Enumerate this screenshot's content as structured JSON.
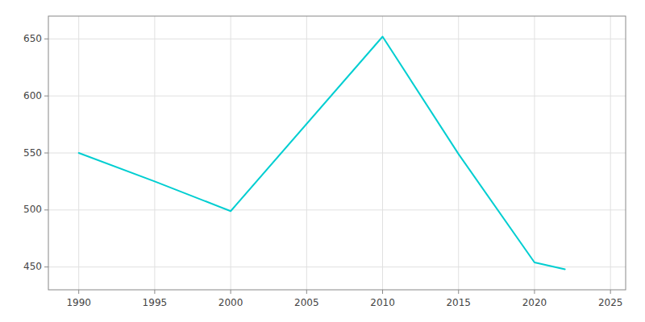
{
  "chart_data": {
    "type": "line",
    "x": [
      1990,
      1995,
      2000,
      2010,
      2015,
      2020,
      2022
    ],
    "values": [
      550,
      525,
      499,
      652,
      549,
      454,
      448
    ],
    "color": "#00CED1",
    "xlim": [
      1988,
      2026
    ],
    "ylim": [
      430,
      670
    ],
    "xticks": [
      1990,
      1995,
      2000,
      2005,
      2010,
      2015,
      2020,
      2025
    ],
    "yticks": [
      450,
      500,
      550,
      600,
      650
    ],
    "grid": true
  }
}
